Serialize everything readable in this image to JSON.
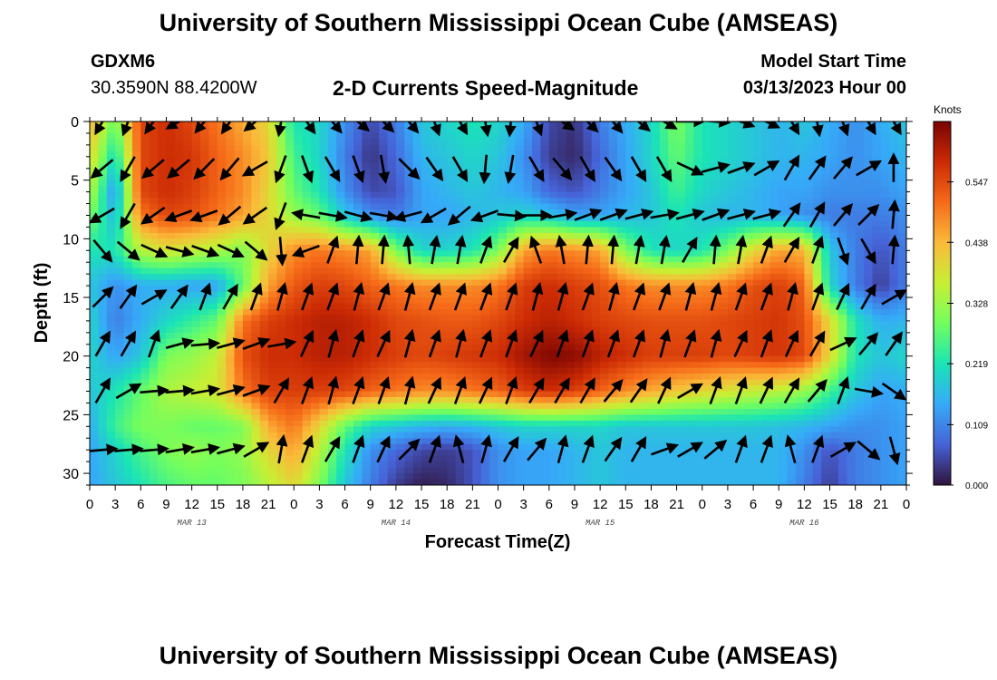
{
  "header": {
    "title": "University of Southern Mississippi Ocean Cube (AMSEAS)",
    "station_id": "GDXM6",
    "station_location": "30.3590N  88.4200W",
    "plot_title": "2-D Currents Speed-Magnitude",
    "start_label": "Model Start Time",
    "start_value": "03/13/2023 Hour 00"
  },
  "footer": {
    "title": "University of Southern Mississippi Ocean Cube (AMSEAS)"
  },
  "chart_data": {
    "type": "heatmap",
    "xlabel": "Forecast Time(Z)",
    "ylabel": "Depth (ft)",
    "x_tick_labels": [
      "0",
      "3",
      "6",
      "9",
      "12",
      "15",
      "18",
      "21",
      "0",
      "3",
      "6",
      "9",
      "12",
      "15",
      "18",
      "21",
      "0",
      "3",
      "6",
      "9",
      "12",
      "15",
      "18",
      "21",
      "0",
      "3",
      "6",
      "9",
      "12",
      "15",
      "18",
      "21",
      "0"
    ],
    "x_range_hours": [
      0,
      96
    ],
    "day_labels": [
      {
        "label": "MAR 13",
        "hour": 12
      },
      {
        "label": "MAR 14",
        "hour": 36
      },
      {
        "label": "MAR 15",
        "hour": 60
      },
      {
        "label": "MAR 16",
        "hour": 84
      }
    ],
    "y_ticks": [
      0,
      5,
      10,
      15,
      20,
      25,
      30
    ],
    "y_range_ft": [
      0,
      31
    ],
    "y_inverted": true,
    "colorbar": {
      "unit": "Knots",
      "tick_labels": [
        "0.000",
        "0.109",
        "0.219",
        "0.328",
        "0.438",
        "0.547"
      ],
      "range": [
        0,
        0.656
      ],
      "colors": [
        "#30123b",
        "#4662d7",
        "#36aaf9",
        "#1ae4b6",
        "#72fe5e",
        "#c8ef34",
        "#faba39",
        "#f66b19",
        "#cb2a04",
        "#7a0403"
      ]
    },
    "speed_grid_hours": [
      0,
      3,
      6,
      9,
      12,
      15,
      18,
      21,
      24,
      27,
      30,
      33,
      36,
      39,
      42,
      45,
      48,
      51,
      54,
      57,
      60,
      63,
      66,
      69,
      72,
      75,
      78,
      81,
      84,
      87,
      90,
      93,
      96
    ],
    "speed_grid_depths_ft": [
      0,
      3,
      6,
      8,
      11,
      14,
      17,
      20,
      23,
      26,
      28,
      31
    ],
    "speed_knots": [
      [
        0.45,
        0.28,
        0.55,
        0.58,
        0.55,
        0.5,
        0.45,
        0.4,
        0.22,
        0.2,
        0.12,
        0.05,
        0.1,
        0.18,
        0.2,
        0.22,
        0.2,
        0.15,
        0.05,
        0.03,
        0.1,
        0.15,
        0.2,
        0.3,
        0.22,
        0.2,
        0.18,
        0.16,
        0.18,
        0.15,
        0.12,
        0.15,
        0.18
      ],
      [
        0.4,
        0.2,
        0.55,
        0.58,
        0.57,
        0.52,
        0.48,
        0.42,
        0.25,
        0.2,
        0.1,
        0.03,
        0.08,
        0.16,
        0.18,
        0.2,
        0.18,
        0.12,
        0.04,
        0.02,
        0.08,
        0.14,
        0.2,
        0.28,
        0.22,
        0.2,
        0.18,
        0.16,
        0.16,
        0.14,
        0.12,
        0.14,
        0.16
      ],
      [
        0.35,
        0.12,
        0.55,
        0.58,
        0.56,
        0.52,
        0.48,
        0.4,
        0.28,
        0.22,
        0.12,
        0.05,
        0.06,
        0.14,
        0.16,
        0.18,
        0.16,
        0.14,
        0.08,
        0.06,
        0.1,
        0.14,
        0.18,
        0.25,
        0.2,
        0.18,
        0.16,
        0.14,
        0.14,
        0.12,
        0.12,
        0.12,
        0.14
      ],
      [
        0.3,
        0.16,
        0.5,
        0.55,
        0.54,
        0.5,
        0.46,
        0.4,
        0.32,
        0.28,
        0.18,
        0.12,
        0.1,
        0.14,
        0.14,
        0.16,
        0.18,
        0.2,
        0.18,
        0.14,
        0.14,
        0.16,
        0.18,
        0.22,
        0.18,
        0.16,
        0.16,
        0.14,
        0.12,
        0.1,
        0.1,
        0.1,
        0.12
      ],
      [
        0.22,
        0.22,
        0.35,
        0.38,
        0.36,
        0.34,
        0.3,
        0.4,
        0.48,
        0.5,
        0.48,
        0.46,
        0.3,
        0.2,
        0.2,
        0.22,
        0.3,
        0.46,
        0.5,
        0.48,
        0.46,
        0.3,
        0.22,
        0.2,
        0.22,
        0.3,
        0.4,
        0.46,
        0.44,
        0.18,
        0.1,
        0.06,
        0.1
      ],
      [
        0.18,
        0.12,
        0.15,
        0.15,
        0.14,
        0.14,
        0.28,
        0.46,
        0.53,
        0.56,
        0.55,
        0.52,
        0.5,
        0.48,
        0.48,
        0.48,
        0.5,
        0.56,
        0.58,
        0.56,
        0.54,
        0.5,
        0.48,
        0.48,
        0.48,
        0.5,
        0.54,
        0.56,
        0.52,
        0.2,
        0.1,
        0.04,
        0.1
      ],
      [
        0.2,
        0.1,
        0.15,
        0.2,
        0.24,
        0.28,
        0.5,
        0.56,
        0.58,
        0.6,
        0.6,
        0.58,
        0.55,
        0.54,
        0.53,
        0.53,
        0.55,
        0.58,
        0.6,
        0.58,
        0.56,
        0.55,
        0.54,
        0.54,
        0.54,
        0.55,
        0.56,
        0.57,
        0.54,
        0.4,
        0.22,
        0.15,
        0.16
      ],
      [
        0.2,
        0.14,
        0.18,
        0.3,
        0.32,
        0.36,
        0.54,
        0.58,
        0.58,
        0.6,
        0.6,
        0.58,
        0.56,
        0.55,
        0.56,
        0.57,
        0.58,
        0.62,
        0.65,
        0.64,
        0.6,
        0.58,
        0.56,
        0.56,
        0.56,
        0.55,
        0.56,
        0.57,
        0.55,
        0.4,
        0.22,
        0.18,
        0.2
      ],
      [
        0.18,
        0.22,
        0.28,
        0.34,
        0.36,
        0.38,
        0.5,
        0.56,
        0.56,
        0.56,
        0.55,
        0.52,
        0.5,
        0.48,
        0.48,
        0.5,
        0.52,
        0.56,
        0.58,
        0.56,
        0.52,
        0.48,
        0.45,
        0.42,
        0.4,
        0.38,
        0.36,
        0.35,
        0.32,
        0.25,
        0.18,
        0.14,
        0.15
      ],
      [
        0.15,
        0.25,
        0.3,
        0.3,
        0.28,
        0.28,
        0.3,
        0.45,
        0.5,
        0.4,
        0.28,
        0.2,
        0.18,
        0.16,
        0.15,
        0.16,
        0.18,
        0.2,
        0.2,
        0.2,
        0.2,
        0.18,
        0.18,
        0.18,
        0.18,
        0.18,
        0.18,
        0.17,
        0.16,
        0.14,
        0.12,
        0.12,
        0.14
      ],
      [
        0.14,
        0.2,
        0.26,
        0.3,
        0.32,
        0.3,
        0.32,
        0.4,
        0.46,
        0.35,
        0.22,
        0.12,
        0.08,
        0.05,
        0.04,
        0.06,
        0.12,
        0.14,
        0.14,
        0.16,
        0.18,
        0.16,
        0.16,
        0.16,
        0.16,
        0.16,
        0.16,
        0.16,
        0.12,
        0.06,
        0.1,
        0.12,
        0.14
      ],
      [
        0.14,
        0.18,
        0.22,
        0.26,
        0.28,
        0.28,
        0.3,
        0.35,
        0.4,
        0.3,
        0.18,
        0.1,
        0.04,
        0.01,
        0.02,
        0.06,
        0.12,
        0.14,
        0.14,
        0.16,
        0.18,
        0.16,
        0.16,
        0.16,
        0.16,
        0.16,
        0.16,
        0.16,
        0.1,
        0.04,
        0.1,
        0.12,
        0.14
      ]
    ],
    "arrow_depths_ft": [
      0,
      4,
      8,
      11,
      15,
      19,
      23,
      28
    ],
    "arrow_times_hours": [
      1.5,
      4.5,
      7.5,
      10.5,
      13.5,
      16.5,
      19.5,
      22.5,
      25.5,
      28.5,
      31.5,
      34.5,
      37.5,
      40.5,
      43.5,
      46.5,
      49.5,
      52.5,
      55.5,
      58.5,
      61.5,
      64.5,
      67.5,
      70.5,
      73.5,
      76.5,
      79.5,
      82.5,
      85.5,
      88.5,
      91.5,
      94.5
    ],
    "arrow_direction_deg": [
      [
        210,
        200,
        215,
        240,
        220,
        215,
        230,
        190,
        145,
        140,
        130,
        135,
        140,
        160,
        150,
        170,
        185,
        160,
        125,
        135,
        140,
        130,
        120,
        90,
        95,
        110,
        115,
        150,
        170,
        160,
        150,
        150
      ],
      [
        230,
        210,
        230,
        230,
        225,
        220,
        240,
        200,
        160,
        150,
        160,
        170,
        135,
        145,
        150,
        185,
        190,
        150,
        140,
        150,
        145,
        150,
        150,
        115,
        75,
        70,
        60,
        30,
        35,
        40,
        60,
        0
      ],
      [
        240,
        210,
        235,
        250,
        250,
        230,
        235,
        200,
        280,
        100,
        105,
        100,
        255,
        240,
        230,
        250,
        95,
        90,
        80,
        70,
        70,
        75,
        80,
        75,
        70,
        75,
        75,
        35,
        30,
        40,
        45,
        5
      ],
      [
        140,
        130,
        115,
        105,
        110,
        115,
        130,
        175,
        250,
        20,
        5,
        5,
        355,
        10,
        10,
        20,
        30,
        340,
        350,
        5,
        5,
        10,
        10,
        30,
        5,
        10,
        20,
        30,
        20,
        160,
        150,
        5
      ],
      [
        45,
        35,
        60,
        35,
        20,
        30,
        20,
        15,
        20,
        20,
        15,
        20,
        15,
        20,
        20,
        20,
        20,
        15,
        15,
        20,
        15,
        20,
        20,
        15,
        15,
        20,
        20,
        15,
        20,
        25,
        30,
        60
      ],
      [
        30,
        30,
        20,
        75,
        85,
        75,
        70,
        80,
        25,
        15,
        20,
        25,
        15,
        20,
        15,
        20,
        20,
        25,
        20,
        20,
        20,
        20,
        15,
        20,
        15,
        25,
        20,
        25,
        30,
        65,
        40,
        35
      ],
      [
        30,
        60,
        85,
        85,
        80,
        75,
        70,
        30,
        20,
        15,
        20,
        20,
        15,
        25,
        20,
        25,
        20,
        30,
        30,
        30,
        40,
        35,
        25,
        60,
        20,
        20,
        25,
        30,
        40,
        20,
        100,
        125
      ],
      [
        85,
        85,
        85,
        80,
        80,
        75,
        60,
        10,
        20,
        30,
        20,
        25,
        45,
        20,
        345,
        15,
        30,
        40,
        15,
        20,
        35,
        30,
        70,
        60,
        50,
        20,
        20,
        345,
        20,
        60,
        130,
        165
      ]
    ]
  }
}
